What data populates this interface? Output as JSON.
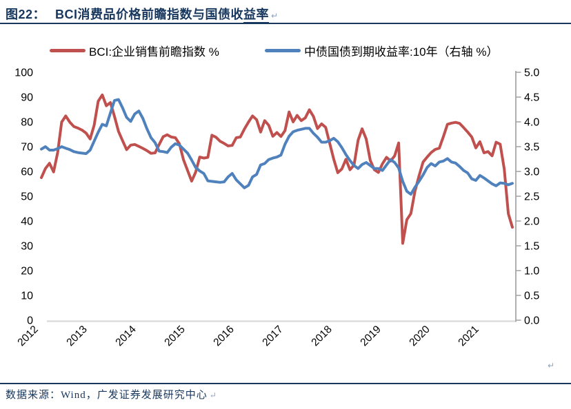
{
  "page": {
    "background": "#ffffff",
    "paragraph_mark": "↵"
  },
  "title": {
    "prefix": "图22：",
    "main": "BCI消费品价格前瞻指数与国债收",
    "underlined": "益率",
    "accent_color": "#17375E"
  },
  "legend": [
    {
      "label": "BCI:企业销售前瞻指数 %",
      "color": "#C0504D"
    },
    {
      "label": "中债国债到期收益率:10年（右轴 %）",
      "color": "#4F81BD"
    }
  ],
  "chart_data": {
    "type": "line",
    "title": "BCI消费品价格前瞻指数与国债收益率",
    "grid": false,
    "legend_position": "top",
    "x_range": {
      "start": "2012-01",
      "end": "2021-09",
      "interval": "monthly"
    },
    "x_ticks": [
      "2012",
      "2013",
      "2014",
      "2015",
      "2016",
      "2017",
      "2018",
      "2019",
      "2020",
      "2021"
    ],
    "left_axis": {
      "min": 0,
      "max": 100,
      "step": 10,
      "tick_labels": [
        "0",
        "10",
        "20",
        "30",
        "40",
        "50",
        "60",
        "70",
        "80",
        "90",
        "100"
      ]
    },
    "right_axis": {
      "min": 0.0,
      "max": 5.0,
      "step": 0.5,
      "tick_labels": [
        "0.0",
        "0.5",
        "1.0",
        "1.5",
        "2.0",
        "2.5",
        "3.0",
        "3.5",
        "4.0",
        "4.5",
        "5.0"
      ]
    },
    "series": [
      {
        "name": "BCI:企业销售前瞻指数 %",
        "axis": "left",
        "color": "#C0504D",
        "values": [
          57.5,
          61.2,
          63.3,
          59.8,
          67.6,
          79.9,
          82.4,
          79.9,
          78.1,
          77.5,
          76.7,
          75.5,
          73.1,
          78.6,
          88.3,
          90.9,
          86.5,
          87.8,
          82.2,
          76.1,
          72.4,
          68.8,
          70.6,
          70.9,
          70.1,
          69.3,
          68.4,
          67.3,
          67.5,
          70.9,
          74.0,
          74.8,
          73.9,
          73.6,
          71.1,
          64.7,
          60.4,
          56.1,
          59.7,
          65.8,
          65.4,
          65.7,
          74.6,
          73.8,
          72.2,
          71.3,
          70.3,
          70.5,
          73.6,
          73.9,
          77.1,
          79.9,
          82.4,
          80.9,
          75.9,
          80.5,
          78.6,
          74.2,
          75.7,
          74.1,
          76.5,
          84.0,
          80.0,
          82.6,
          80.5,
          81.6,
          84.9,
          82.2,
          77.3,
          79.2,
          77.8,
          71.5,
          65.0,
          59.5,
          61.0,
          64.9,
          60.7,
          62.6,
          72.6,
          77.2,
          73.1,
          64.5,
          60.7,
          59.6,
          63.1,
          65.7,
          64.2,
          66.3,
          71.5,
          31.0,
          40.5,
          43.0,
          52.0,
          58.2,
          63.8,
          65.8,
          67.6,
          68.9,
          69.4,
          74.0,
          79.0,
          79.5,
          79.8,
          79.4,
          77.7,
          75.9,
          73.9,
          69.5,
          72.0,
          67.5,
          68.0,
          66.3,
          71.8,
          71.0,
          61.0,
          43.0,
          37.5
        ]
      },
      {
        "name": "中债国债到期收益率:10年（右轴 %）",
        "axis": "right",
        "color": "#4F81BD",
        "values": [
          3.45,
          3.5,
          3.43,
          3.43,
          3.46,
          3.5,
          3.47,
          3.44,
          3.4,
          3.38,
          3.37,
          3.36,
          3.43,
          3.61,
          3.79,
          3.95,
          3.92,
          4.18,
          4.43,
          4.45,
          4.28,
          4.09,
          4.01,
          4.16,
          4.22,
          4.07,
          3.86,
          3.68,
          3.58,
          3.41,
          3.4,
          3.38,
          3.49,
          3.56,
          3.53,
          3.45,
          3.37,
          3.23,
          3.08,
          3.01,
          2.96,
          2.81,
          2.8,
          2.79,
          2.78,
          2.79,
          2.89,
          2.96,
          2.83,
          2.75,
          2.67,
          2.72,
          2.89,
          2.94,
          3.13,
          3.16,
          3.24,
          3.27,
          3.29,
          3.33,
          3.55,
          3.71,
          3.8,
          3.83,
          3.85,
          3.87,
          3.87,
          3.77,
          3.69,
          3.59,
          3.59,
          3.62,
          3.67,
          3.6,
          3.48,
          3.34,
          3.22,
          3.12,
          3.06,
          3.14,
          3.18,
          3.12,
          3.06,
          3.06,
          3.02,
          3.13,
          3.24,
          3.18,
          3.07,
          2.8,
          2.6,
          2.54,
          2.68,
          2.8,
          2.93,
          3.08,
          3.16,
          3.11,
          3.19,
          3.21,
          3.26,
          3.19,
          3.17,
          3.1,
          3.02,
          2.97,
          2.85,
          2.82,
          2.92,
          2.87,
          2.81,
          2.75,
          2.71,
          2.77,
          2.76,
          2.73,
          2.76
        ]
      }
    ]
  },
  "footer": {
    "text": "数据来源：Wind，广发证券发展研究中心"
  }
}
